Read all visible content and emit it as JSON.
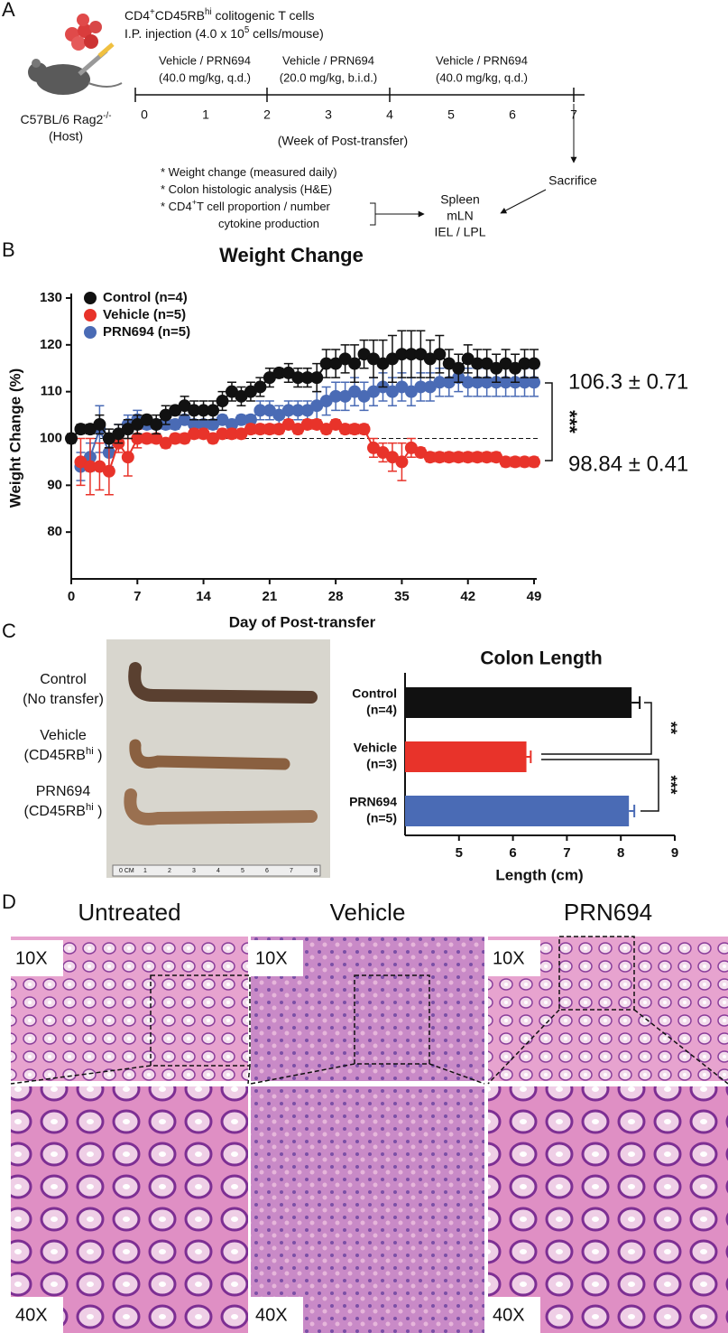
{
  "panel_labels": [
    "A",
    "B",
    "C",
    "D"
  ],
  "schematic": {
    "cells_line": [
      {
        "t": "CD4"
      },
      {
        "sup": "+"
      },
      {
        "t": "CD45RB"
      },
      {
        "sup": "hi"
      },
      {
        "t": " colitogenic T cells"
      }
    ],
    "injection_line": [
      {
        "t": "I.P. injection (4.0 x 10"
      },
      {
        "sup": "5"
      },
      {
        "t": " cells/mouse)"
      }
    ],
    "host": [
      {
        "t": "C57BL/6 Rag2"
      },
      {
        "sup": "-/-"
      }
    ],
    "host_note": "(Host)",
    "treatments": [
      {
        "drug": "Vehicle / PRN694",
        "dose": "(40.0 mg/kg, q.d.)"
      },
      {
        "drug": "Vehicle / PRN694",
        "dose": "(20.0 mg/kg, b.i.d.)"
      },
      {
        "drug": "Vehicle / PRN694",
        "dose": "(40.0 mg/kg, q.d.)"
      }
    ],
    "weeks": [
      0,
      1,
      2,
      3,
      4,
      5,
      6,
      7
    ],
    "axis_label": "(Week of Post-transfer)",
    "readouts": [
      [
        {
          "t": "* Weight change (measured daily)"
        }
      ],
      [
        {
          "t": "* Colon histologic analysis (H&E)"
        }
      ],
      [
        {
          "t": "* CD4"
        },
        {
          "sup": "+"
        },
        {
          "t": "T cell proportion / number"
        }
      ],
      [
        {
          "t": "cytokine production"
        }
      ]
    ],
    "tissues": [
      "Spleen",
      "mLN",
      "IEL / LPL"
    ],
    "endpoint": "Sacrifice"
  },
  "chart_data": [
    {
      "type": "line",
      "title": "Weight Change",
      "x_label": "Day of Post-transfer",
      "y_label": "Weight Change (%)",
      "x": [
        0,
        1,
        2,
        3,
        4,
        5,
        6,
        7,
        8,
        9,
        10,
        11,
        12,
        13,
        14,
        15,
        16,
        17,
        18,
        19,
        20,
        21,
        22,
        23,
        24,
        25,
        26,
        27,
        28,
        29,
        30,
        31,
        32,
        33,
        34,
        35,
        36,
        37,
        38,
        39,
        40,
        41,
        42,
        43,
        44,
        45,
        46,
        47,
        48,
        49
      ],
      "xlim": [
        0,
        49
      ],
      "xticks": [
        0,
        7,
        14,
        21,
        28,
        35,
        42,
        49
      ],
      "ylim": [
        70,
        130
      ],
      "yticks": [
        80,
        90,
        100,
        110,
        120,
        130
      ],
      "reference_line": 100,
      "legend": "upper left",
      "series": [
        {
          "name": "Control (n=4)",
          "color": "#111111",
          "values": [
            100,
            102,
            102,
            103,
            100,
            101,
            102,
            103,
            104,
            103,
            105,
            106,
            107,
            106,
            106,
            106,
            108,
            110,
            109,
            110,
            111,
            113,
            114,
            114,
            113,
            113,
            113,
            116,
            116,
            117,
            116,
            118,
            117,
            116,
            117,
            118,
            118,
            118,
            117,
            118,
            116,
            115,
            117,
            116,
            116,
            115,
            116,
            115,
            116,
            116
          ],
          "errors": [
            1,
            1,
            1,
            2,
            2,
            2,
            2,
            2,
            1,
            2,
            2,
            1,
            2,
            2,
            2,
            2,
            2,
            2,
            2,
            2,
            2,
            2,
            1,
            2,
            2,
            2,
            3,
            3,
            3,
            3,
            4,
            3,
            4,
            5,
            5,
            5,
            5,
            5,
            4,
            4,
            3,
            3,
            3,
            3,
            3,
            3,
            3,
            3,
            3,
            3
          ]
        },
        {
          "name": "Vehicle (n=5)",
          "color": "#e8332a",
          "values": [
            null,
            95,
            94,
            94,
            93,
            99,
            96,
            100,
            100,
            100,
            99,
            100,
            100,
            101,
            101,
            100,
            101,
            101,
            101,
            102,
            102,
            102,
            102,
            103,
            102,
            103,
            103,
            102,
            103,
            102,
            102,
            102,
            98,
            97,
            96,
            95,
            98,
            97,
            96,
            96,
            96,
            96,
            96,
            96,
            96,
            96,
            95,
            95,
            95,
            95
          ],
          "errors": [
            null,
            5,
            6,
            5,
            5,
            2,
            4,
            2,
            1,
            1,
            1,
            1,
            1,
            1,
            1,
            1,
            1,
            1,
            1,
            1,
            1,
            1,
            1,
            1,
            1,
            1,
            1,
            1,
            1,
            1,
            1,
            1,
            2,
            2,
            3,
            4,
            2,
            1,
            1,
            1,
            1,
            1,
            1,
            1,
            1,
            1,
            1,
            1,
            1,
            1
          ]
        },
        {
          "name": "PRN694 (n=5)",
          "color": "#4a6bb5",
          "values": [
            null,
            94,
            96,
            102,
            97,
            101,
            103,
            104,
            103,
            103,
            103,
            103,
            104,
            103,
            103,
            103,
            104,
            103,
            104,
            104,
            106,
            106,
            105,
            106,
            106,
            106,
            107,
            108,
            109,
            109,
            110,
            109,
            110,
            111,
            110,
            111,
            110,
            111,
            111,
            112,
            112,
            113,
            112,
            112,
            112,
            112,
            112,
            112,
            112,
            112
          ],
          "errors": [
            null,
            3,
            3,
            5,
            3,
            2,
            2,
            2,
            1,
            1,
            1,
            1,
            1,
            1,
            1,
            1,
            1,
            1,
            1,
            1,
            2,
            2,
            2,
            2,
            2,
            2,
            3,
            3,
            3,
            3,
            3,
            3,
            3,
            3,
            3,
            3,
            3,
            3,
            3,
            3,
            3,
            3,
            3,
            3,
            3,
            3,
            3,
            3,
            3,
            3
          ]
        }
      ],
      "annotations": [
        {
          "text": "106.3 ± 0.71",
          "color": "#4a6bb5"
        },
        {
          "text": "98.84 ± 0.41",
          "color": "#e8332a"
        }
      ],
      "significance": "***"
    },
    {
      "type": "hbar",
      "title": "Colon Length",
      "x_label": "Length (cm)",
      "categories": [
        "Control",
        "Vehicle",
        "PRN694"
      ],
      "group_sizes": [
        "(n=4)",
        "(n=3)",
        "(n=5)"
      ],
      "values": [
        8.2,
        6.25,
        8.15
      ],
      "errors": [
        0.15,
        0.08,
        0.1
      ],
      "colors": [
        "#111111",
        "#e8332a",
        "#4a6bb5"
      ],
      "xlim": [
        4,
        9
      ],
      "xticks": [
        5,
        6,
        7,
        8,
        9
      ],
      "significance": [
        "**",
        "***"
      ]
    }
  ],
  "photo": {
    "samples": [
      {
        "name": "Control",
        "detail": [
          {
            "t": "(No transfer)"
          }
        ]
      },
      {
        "name": "Vehicle",
        "detail": [
          {
            "t": "(CD45RB"
          },
          {
            "sup": "hi"
          },
          {
            "t": " )"
          }
        ]
      },
      {
        "name": "PRN694",
        "detail": [
          {
            "t": "(CD45RB"
          },
          {
            "sup": "hi"
          },
          {
            "t": " )"
          }
        ]
      }
    ],
    "ruler": [
      "0 CM",
      "1",
      "2",
      "3",
      "4",
      "5",
      "6",
      "7",
      "8"
    ]
  },
  "histology": {
    "columns": [
      "Untreated",
      "Vehicle",
      "PRN694"
    ],
    "magnifications": [
      "10X",
      "40X"
    ]
  }
}
